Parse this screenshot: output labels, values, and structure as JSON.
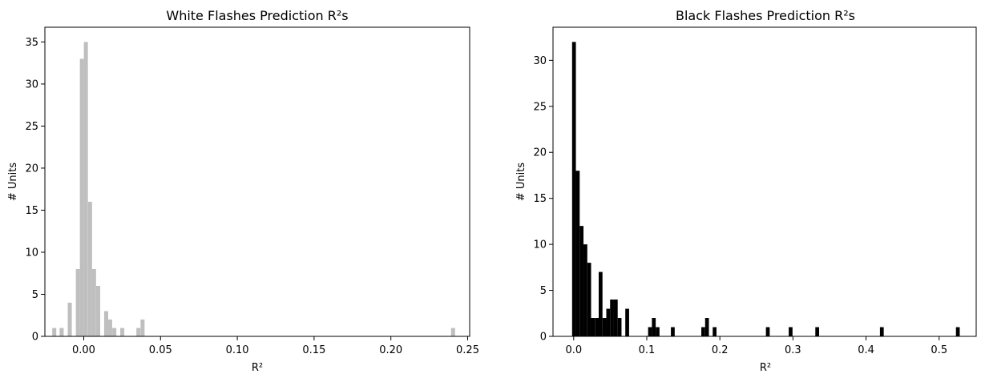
{
  "chart_data": [
    {
      "type": "bar",
      "title": "White Flashes Prediction R²s",
      "xlabel": "R²",
      "ylabel": "# Units",
      "bar_color": "#bfbfbf",
      "xlim": [
        -0.0253,
        0.2513
      ],
      "ylim": [
        0,
        36.75
      ],
      "xticks": [
        0.0,
        0.05,
        0.1,
        0.15,
        0.2,
        0.25
      ],
      "xtick_labels": [
        "0.00",
        "0.05",
        "0.10",
        "0.15",
        "0.20",
        "0.25"
      ],
      "yticks": [
        0,
        5,
        10,
        15,
        20,
        25,
        30,
        35
      ],
      "bin_width": 0.00263,
      "series": [
        {
          "x": [
            -0.0192,
            -0.0144,
            -0.0091,
            -0.0038,
            -0.0012,
            0.0014,
            0.0041,
            0.0067,
            0.0094,
            0.0146,
            0.0172,
            0.0199,
            0.0251,
            0.0356,
            0.0383,
            0.2405
          ],
          "values": [
            1,
            1,
            4,
            8,
            33,
            35,
            16,
            8,
            6,
            3,
            2,
            1,
            1,
            1,
            2,
            1
          ]
        }
      ],
      "grid": false
    },
    {
      "type": "bar",
      "title": "Black Flashes Prediction R²s",
      "xlabel": "R²",
      "ylabel": "# Units",
      "bar_color": "#000000",
      "xlim": [
        -0.0283,
        0.5507
      ],
      "ylim": [
        0,
        33.6
      ],
      "xticks": [
        0.0,
        0.1,
        0.2,
        0.3,
        0.4,
        0.5
      ],
      "xtick_labels": [
        "0.0",
        "0.1",
        "0.2",
        "0.3",
        "0.4",
        "0.5"
      ],
      "yticks": [
        0,
        5,
        10,
        15,
        20,
        25,
        30
      ],
      "bin_width": 0.0052,
      "series": [
        {
          "x": [
            0.0004,
            0.0056,
            0.0108,
            0.016,
            0.0212,
            0.0264,
            0.0316,
            0.0368,
            0.042,
            0.0472,
            0.0524,
            0.0576,
            0.0628,
            0.0732,
            0.1044,
            0.1096,
            0.1148,
            0.1356,
            0.1772,
            0.1824,
            0.1928,
            0.2656,
            0.2968,
            0.3332,
            0.4216,
            0.5256
          ],
          "values": [
            32,
            18,
            12,
            10,
            8,
            2,
            2,
            7,
            2,
            3,
            4,
            4,
            2,
            3,
            1,
            2,
            1,
            1,
            1,
            2,
            1,
            1,
            1,
            1,
            1,
            1
          ]
        }
      ],
      "grid": false
    }
  ]
}
